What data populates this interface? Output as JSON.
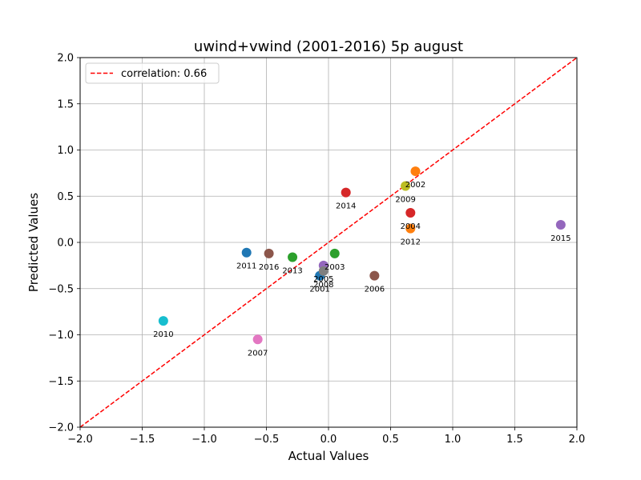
{
  "chart_data": {
    "type": "scatter",
    "title": "uwind+vwind (2001-2016) 5p august",
    "xlabel": "Actual Values",
    "ylabel": "Predicted Values",
    "xlim": [
      -2.0,
      2.0
    ],
    "ylim": [
      -2.0,
      2.0
    ],
    "xticks": [
      "−2.0",
      "−1.5",
      "−1.0",
      "−0.5",
      "0.0",
      "0.5",
      "1.0",
      "1.5",
      "2.0"
    ],
    "yticks": [
      "−2.0",
      "−1.5",
      "−1.0",
      "−0.5",
      "0.0",
      "0.5",
      "1.0",
      "1.5",
      "2.0"
    ],
    "grid": true,
    "reference_line": {
      "label": "correlation: 0.66",
      "color": "#ff0000",
      "style": "dashed",
      "from": [
        -2.0,
        -2.0
      ],
      "to": [
        2.0,
        2.0
      ]
    },
    "legend": {
      "position": "top-left"
    },
    "points": [
      {
        "label": "2001",
        "x": -0.07,
        "y": -0.36,
        "color": "#1f77b4"
      },
      {
        "label": "2002",
        "x": 0.7,
        "y": 0.77,
        "color": "#ff7f0e"
      },
      {
        "label": "2003",
        "x": 0.05,
        "y": -0.12,
        "color": "#2ca02c"
      },
      {
        "label": "2004",
        "x": 0.66,
        "y": 0.32,
        "color": "#d62728"
      },
      {
        "label": "2005",
        "x": -0.04,
        "y": -0.25,
        "color": "#9467bd"
      },
      {
        "label": "2006",
        "x": 0.37,
        "y": -0.36,
        "color": "#8c564b"
      },
      {
        "label": "2007",
        "x": -0.57,
        "y": -1.05,
        "color": "#e377c2"
      },
      {
        "label": "2008",
        "x": -0.04,
        "y": -0.31,
        "color": "#7f7f7f"
      },
      {
        "label": "2009",
        "x": 0.62,
        "y": 0.61,
        "color": "#bcbd22"
      },
      {
        "label": "2010",
        "x": -1.33,
        "y": -0.85,
        "color": "#17becf"
      },
      {
        "label": "2011",
        "x": -0.66,
        "y": -0.11,
        "color": "#1f77b4"
      },
      {
        "label": "2012",
        "x": 0.66,
        "y": 0.15,
        "color": "#ff7f0e"
      },
      {
        "label": "2013",
        "x": -0.29,
        "y": -0.16,
        "color": "#2ca02c"
      },
      {
        "label": "2014",
        "x": 0.14,
        "y": 0.54,
        "color": "#d62728"
      },
      {
        "label": "2015",
        "x": 1.87,
        "y": 0.19,
        "color": "#9467bd"
      },
      {
        "label": "2016",
        "x": -0.48,
        "y": -0.12,
        "color": "#8c564b"
      }
    ]
  }
}
